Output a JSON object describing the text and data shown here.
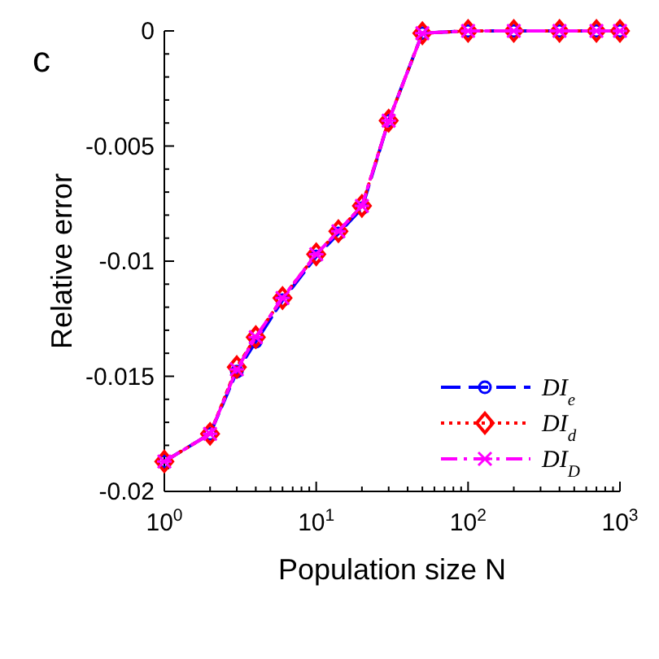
{
  "chart_data": {
    "type": "line",
    "ylabel": "Relative error",
    "xlabel": "Population size N",
    "annotations": [
      "c"
    ],
    "log": "x",
    "x": [
      1,
      2,
      3,
      4,
      6,
      10,
      14,
      20,
      30,
      50,
      100,
      200,
      400,
      700,
      1000
    ],
    "xlim": [
      1,
      1000
    ],
    "xticks": [
      {
        "value": 1,
        "label": "10$^{0}$"
      },
      {
        "value": 2,
        "label": null
      },
      {
        "value": 3,
        "label": null
      },
      {
        "value": 4,
        "label": null
      },
      {
        "value": 5,
        "label": null
      },
      {
        "value": 6,
        "label": null
      },
      {
        "value": 7,
        "label": null
      },
      {
        "value": 8,
        "label": null
      },
      {
        "value": 9,
        "label": null
      },
      {
        "value": 10,
        "label": "10$^{1}$"
      },
      {
        "value": 20,
        "label": null
      },
      {
        "value": 30,
        "label": null
      },
      {
        "value": 40,
        "label": null
      },
      {
        "value": 50,
        "label": null
      },
      {
        "value": 60,
        "label": null
      },
      {
        "value": 70,
        "label": null
      },
      {
        "value": 80,
        "label": null
      },
      {
        "value": 90,
        "label": null
      },
      {
        "value": 100,
        "label": "10$^{2}$"
      },
      {
        "value": 200,
        "label": null
      },
      {
        "value": 300,
        "label": null
      },
      {
        "value": 400,
        "label": null
      },
      {
        "value": 500,
        "label": null
      },
      {
        "value": 600,
        "label": null
      },
      {
        "value": 700,
        "label": null
      },
      {
        "value": 800,
        "label": null
      },
      {
        "value": 900,
        "label": null
      },
      {
        "value": 1000,
        "label": "10$^{3}$"
      }
    ],
    "ylim": [
      -0.02,
      0
    ],
    "yticks": [
      {
        "value": -0.02,
        "label": "-0.02"
      },
      {
        "value": -0.019,
        "label": null
      },
      {
        "value": -0.018,
        "label": null
      },
      {
        "value": -0.017,
        "label": null
      },
      {
        "value": -0.016,
        "label": null
      },
      {
        "value": -0.015,
        "label": "-0.015"
      },
      {
        "value": -0.014,
        "label": null
      },
      {
        "value": -0.013,
        "label": null
      },
      {
        "value": -0.012,
        "label": null
      },
      {
        "value": -0.011,
        "label": null
      },
      {
        "value": -0.01,
        "label": "-0.01"
      },
      {
        "value": -0.009,
        "label": null
      },
      {
        "value": -0.008,
        "label": null
      },
      {
        "value": -0.007,
        "label": null
      },
      {
        "value": -0.006,
        "label": null
      },
      {
        "value": -0.005,
        "label": "-0.005"
      },
      {
        "value": -0.004,
        "label": null
      },
      {
        "value": -0.003,
        "label": null
      },
      {
        "value": -0.002,
        "label": null
      },
      {
        "value": -0.001,
        "label": null
      },
      {
        "value": 0,
        "label": "0"
      }
    ],
    "legend": "bottom right",
    "grid": false,
    "series": [
      {
        "name": "DI$_{e}$",
        "color": "#0000ff",
        "marker": "circle",
        "line_style": "dashed",
        "values": [
          -0.0187,
          -0.0175,
          -0.0148,
          -0.0135,
          -0.0117,
          -0.0098,
          -0.0088,
          -0.0077,
          -0.0039,
          -0.0001,
          0,
          0,
          0,
          0,
          0
        ]
      },
      {
        "name": "DI$_{d}$",
        "color": "#ff0000",
        "marker": "diamond",
        "line_style": "dotted",
        "values": [
          -0.0187,
          -0.0175,
          -0.0146,
          -0.0133,
          -0.0116,
          -0.0097,
          -0.0087,
          -0.0076,
          -0.0039,
          -0.0001,
          0,
          0,
          0,
          0,
          0
        ]
      },
      {
        "name": "DI$_{D}$",
        "color": "#ff00ff",
        "marker": "cross",
        "line_style": "dashdot",
        "values": [
          -0.0187,
          -0.0175,
          -0.0147,
          -0.0133,
          -0.0116,
          -0.0097,
          -0.0087,
          -0.0076,
          -0.0039,
          -0.0001,
          0,
          0,
          0,
          0,
          0
        ]
      }
    ]
  }
}
